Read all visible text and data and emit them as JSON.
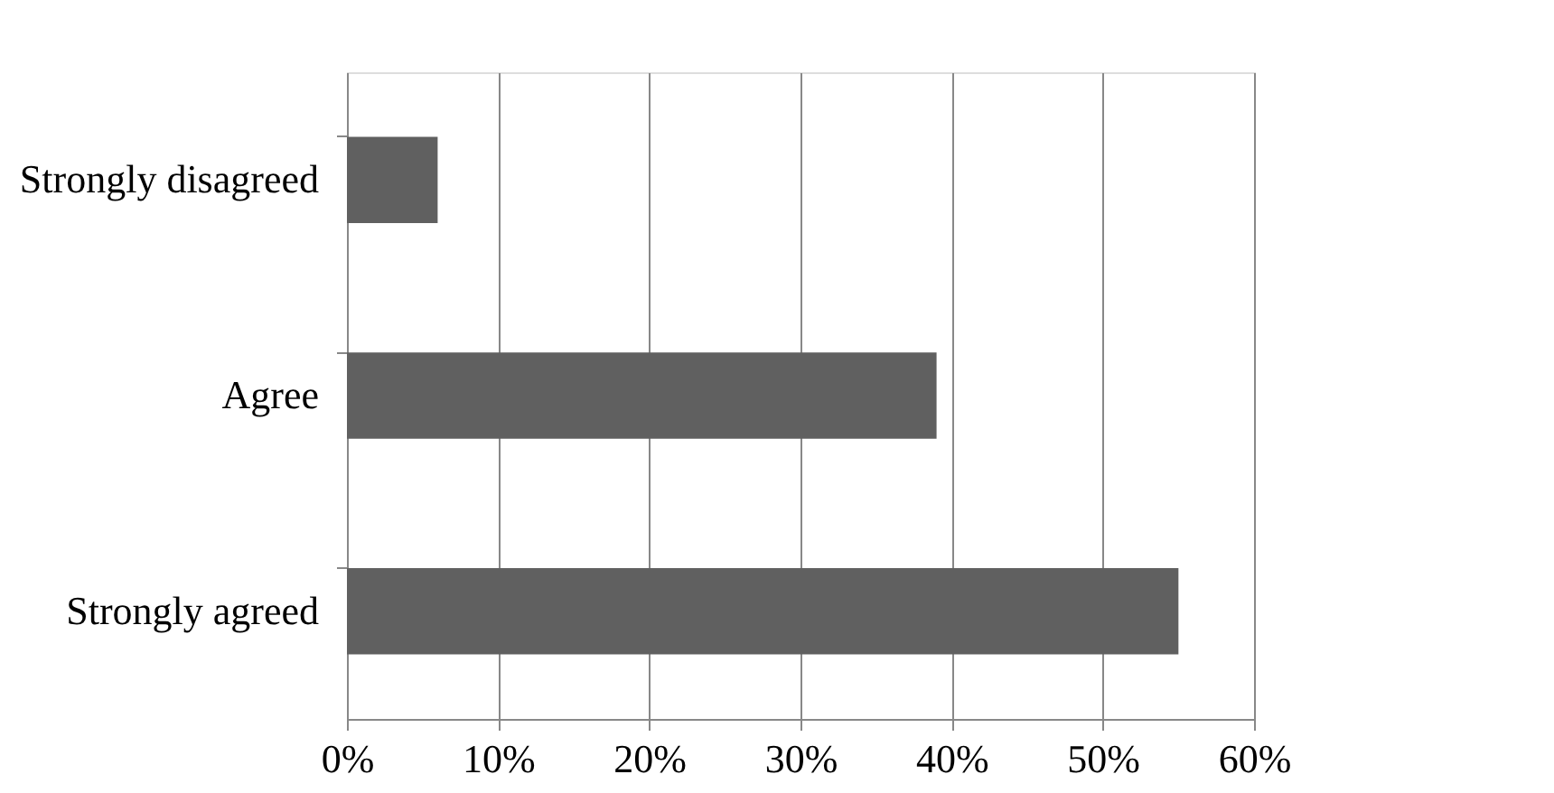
{
  "chart_data": {
    "type": "bar",
    "orientation": "horizontal",
    "categories": [
      "Strongly disagreed",
      "Agree",
      "Strongly agreed"
    ],
    "values": [
      6,
      39,
      55
    ],
    "color": "#606060",
    "xlim": [
      0,
      60
    ],
    "xticks": [
      {
        "value": 0,
        "label": "0%"
      },
      {
        "value": 10,
        "label": "10%"
      },
      {
        "value": 20,
        "label": "20%"
      },
      {
        "value": 30,
        "label": "30%"
      },
      {
        "value": 40,
        "label": "40%"
      },
      {
        "value": 50,
        "label": "50%"
      },
      {
        "value": 60,
        "label": "60%"
      }
    ],
    "grid": "x"
  }
}
